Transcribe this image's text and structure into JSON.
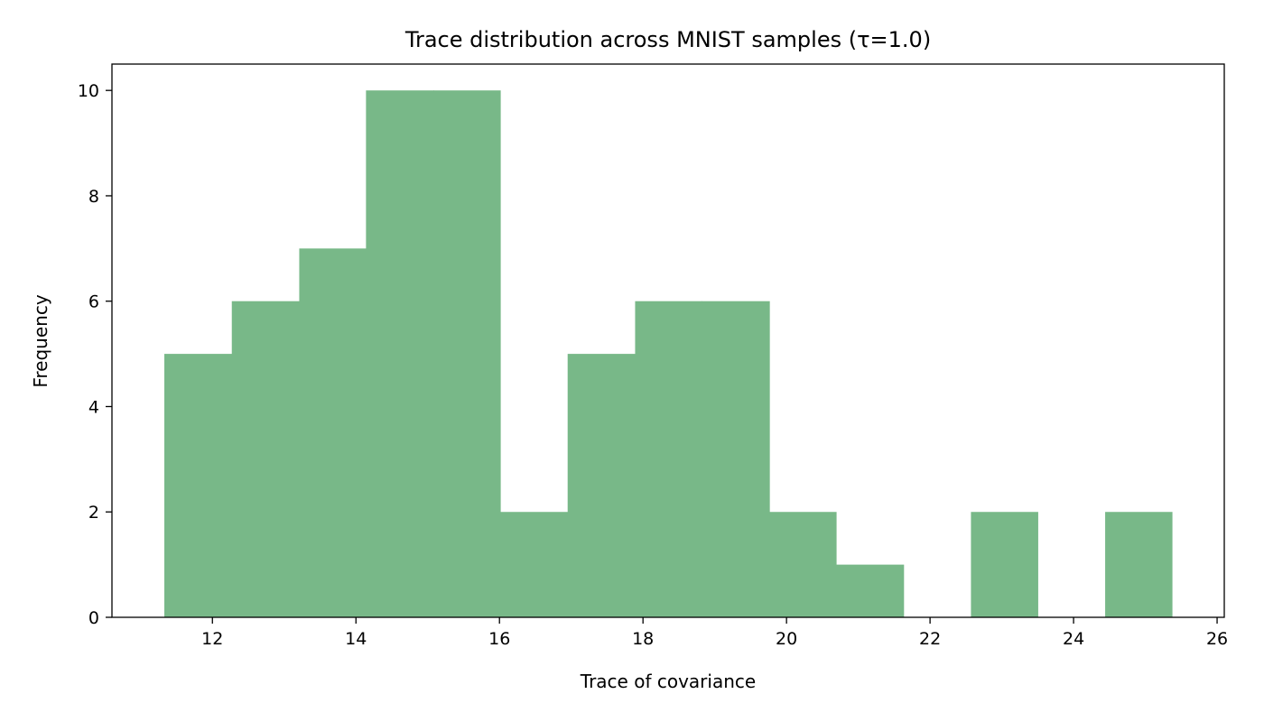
{
  "chart_data": {
    "type": "bar",
    "title": "Trace distribution across MNIST samples (τ=1.0)",
    "xlabel": "Trace of covariance",
    "ylabel": "Frequency",
    "xlim": [
      10.6,
      26.1
    ],
    "ylim": [
      0,
      10.5
    ],
    "grid": false,
    "legend": "none",
    "bar_color": "#78b888",
    "xticks": [
      12,
      14,
      16,
      18,
      20,
      22,
      24,
      26
    ],
    "yticks": [
      0,
      2,
      4,
      6,
      8,
      10
    ],
    "bins": [
      {
        "start": 11.33,
        "end": 12.27,
        "count": 5
      },
      {
        "start": 12.27,
        "end": 13.21,
        "count": 6
      },
      {
        "start": 13.21,
        "end": 14.14,
        "count": 7
      },
      {
        "start": 14.14,
        "end": 15.08,
        "count": 10
      },
      {
        "start": 15.08,
        "end": 16.01,
        "count": 10
      },
      {
        "start": 16.01,
        "end": 16.95,
        "count": 2
      },
      {
        "start": 16.95,
        "end": 17.89,
        "count": 5
      },
      {
        "start": 17.89,
        "end": 18.82,
        "count": 6
      },
      {
        "start": 18.82,
        "end": 19.76,
        "count": 6
      },
      {
        "start": 19.76,
        "end": 20.69,
        "count": 2
      },
      {
        "start": 20.69,
        "end": 21.63,
        "count": 1
      },
      {
        "start": 21.63,
        "end": 22.57,
        "count": 0
      },
      {
        "start": 22.57,
        "end": 23.5,
        "count": 2
      },
      {
        "start": 23.5,
        "end": 24.44,
        "count": 0
      },
      {
        "start": 24.44,
        "end": 25.37,
        "count": 2
      }
    ]
  }
}
